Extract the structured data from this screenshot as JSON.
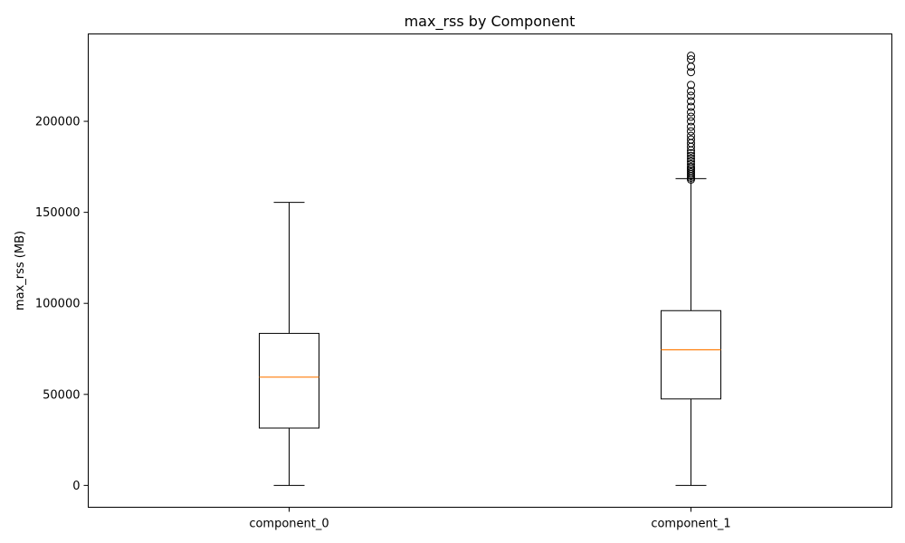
{
  "chart_data": {
    "type": "boxplot",
    "title": "max_rss by Component",
    "xlabel": "",
    "ylabel": "max_rss (MB)",
    "ylim": [
      -12000,
      248000
    ],
    "yticks": [
      0,
      50000,
      100000,
      150000,
      200000
    ],
    "ytick_labels": [
      "0",
      "50000",
      "100000",
      "150000",
      "200000"
    ],
    "grid": false,
    "colors": {
      "box": "#000000",
      "median": "#ff7f0e",
      "outlier": "#000000"
    },
    "categories": [
      "component_0",
      "component_1"
    ],
    "boxes": [
      {
        "name": "component_0",
        "whisker_low": 0,
        "q1": 31500,
        "median": 59500,
        "q3": 83500,
        "whisker_high": 155500,
        "outliers": []
      },
      {
        "name": "component_1",
        "whisker_low": 0,
        "q1": 47500,
        "median": 74500,
        "q3": 96000,
        "whisker_high": 168500,
        "outliers": [
          168000,
          169000,
          170000,
          171000,
          172000,
          173000,
          174000,
          175000,
          176500,
          178000,
          179500,
          181000,
          182500,
          184000,
          186000,
          188000,
          190000,
          192000,
          194500,
          197000,
          200000,
          202500,
          205000,
          208000,
          211000,
          214000,
          216500,
          220000,
          227000,
          230000,
          234000,
          236000
        ]
      }
    ]
  }
}
